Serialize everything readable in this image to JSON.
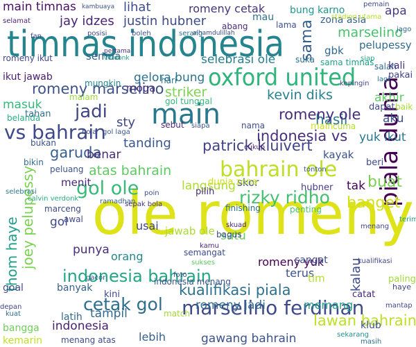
{
  "words": [
    {
      "text": "ole romeny",
      "color": "#dde318"
    },
    {
      "text": "timnas indonesia",
      "color": "#25848e"
    },
    {
      "text": "oxford united",
      "color": "#2fb47c"
    },
    {
      "text": "main",
      "color": "#2a788e"
    },
    {
      "text": "marselino ferdinan",
      "color": "#3e4a89"
    },
    {
      "text": "piala dunia",
      "color": "#440154"
    },
    {
      "text": "bahrain ole",
      "color": "#bddf26"
    },
    {
      "text": "vs bahrain",
      "color": "#3f4889"
    },
    {
      "text": "gol ole",
      "color": "#38b977"
    },
    {
      "text": "indonesia bahrain",
      "color": "#21a685"
    },
    {
      "text": "rizky ridho",
      "color": "#44bf70"
    },
    {
      "text": "cetak gol",
      "color": "#2e6d8e"
    },
    {
      "text": "romeny marselino",
      "color": "#3b528b"
    },
    {
      "text": "indonesia vs",
      "color": "#472d7b"
    },
    {
      "text": "jadi",
      "color": "#404688"
    },
    {
      "text": "hasil",
      "color": "#2a788e"
    },
    {
      "text": "romeny ole",
      "color": "#472c7a"
    },
    {
      "text": "patrick kluivert",
      "color": "#414287"
    },
    {
      "text": "garuda",
      "color": "#355f8d"
    },
    {
      "text": "atas bahrain",
      "color": "#5ec962"
    },
    {
      "text": "kualifikasi piala",
      "color": "#2d718e"
    },
    {
      "text": "lawan bahrain",
      "color": "#bddf26"
    },
    {
      "text": "joey pelupessy",
      "color": "#7ad151"
    },
    {
      "text": "thom haye",
      "color": "#1f9e89"
    },
    {
      "text": "kevin diks",
      "color": "#26828e"
    },
    {
      "text": "striker",
      "color": "#7fd34e"
    },
    {
      "text": "banget",
      "color": "#d0e11c"
    },
    {
      "text": "buat",
      "color": "#7ad151"
    },
    {
      "text": "sama",
      "color": "#355e8d"
    },
    {
      "text": "justin hubner",
      "color": "#3e4989"
    },
    {
      "text": "jay idzes",
      "color": "#482475"
    },
    {
      "text": "main timnas",
      "color": "#471063"
    },
    {
      "text": "lihat",
      "color": "#3e4c8a"
    },
    {
      "text": "romeny cetak",
      "color": "#46337e"
    },
    {
      "text": "bung karno",
      "color": "#1f988b"
    },
    {
      "text": "apa",
      "color": "#443a83"
    },
    {
      "text": "marselino",
      "color": "#4ac16d"
    },
    {
      "text": "pelupessy",
      "color": "#306a8e"
    },
    {
      "text": "selebrasi ole",
      "color": "#287d8e"
    },
    {
      "text": "gelora bung",
      "color": "#2c728e"
    },
    {
      "text": "masuk",
      "color": "#35b779"
    },
    {
      "text": "akhir",
      "color": "#5ec962"
    },
    {
      "text": "aku",
      "color": "#3b528b"
    },
    {
      "text": "yuk ikut",
      "color": "#2a778e"
    },
    {
      "text": "indonesia menang",
      "color": "#3b528b"
    },
    {
      "text": "romeny jadi",
      "color": "#2f6c8e"
    },
    {
      "text": "gawang bahrain",
      "color": "#3b528b"
    },
    {
      "text": "tanding",
      "color": "#39568c"
    },
    {
      "text": "langsung",
      "color": "#addc30"
    },
    {
      "text": "kalau",
      "color": "#3e4989"
    },
    {
      "text": "romeny yuk",
      "color": "#440154"
    },
    {
      "text": "usai",
      "color": "#404688"
    },
    {
      "text": "tampil",
      "color": "#31688e"
    },
    {
      "text": "satu",
      "color": "#65cb5e"
    },
    {
      "text": "punya",
      "color": "#472d7b"
    },
    {
      "text": "memang",
      "color": "#1f9f88"
    },
    {
      "text": "lebih",
      "color": "#355f8d"
    },
    {
      "text": "menang atas",
      "color": "#3e4a89"
    },
    {
      "text": "indonesia",
      "color": "#482173"
    },
    {
      "text": "skor",
      "color": "#39568c"
    },
    {
      "text": "tak",
      "color": "#440154"
    },
    {
      "text": "kayak",
      "color": "#3b528b"
    },
    {
      "text": "benar",
      "color": "#472c7a"
    },
    {
      "text": "sty",
      "color": "#3f4788"
    },
    {
      "text": "nama",
      "color": "#3e4c8a"
    },
    {
      "text": "semua",
      "color": "#34618d"
    },
    {
      "text": "moga",
      "color": "#472f7d"
    },
    {
      "text": "gbk",
      "color": "#31688e"
    },
    {
      "text": "lama",
      "color": "#3b528b"
    },
    {
      "text": "zona asia",
      "color": "#355f8d"
    },
    {
      "text": "abang",
      "color": "#472c7a"
    },
    {
      "text": "mau",
      "color": "#2c718e"
    },
    {
      "text": "ikut jawab",
      "color": "#481c6e"
    },
    {
      "text": "romeny ikut",
      "color": "#3f4788"
    },
    {
      "text": "hari",
      "color": "#2d718e"
    },
    {
      "text": "mungkin",
      "color": "#25848e"
    },
    {
      "text": "malam",
      "color": "#9bd93c"
    },
    {
      "text": "belanda",
      "color": "#27ad81"
    },
    {
      "text": "tahan",
      "color": "#2e6e8e"
    },
    {
      "text": "bola",
      "color": "#3e4c8a"
    },
    {
      "text": "gol laga",
      "color": "#39568c"
    },
    {
      "text": "bukan",
      "color": "#3b528b"
    },
    {
      "text": "peluang",
      "color": "#3b528b"
    },
    {
      "text": "menit",
      "color": "#482878"
    },
    {
      "text": "marceng",
      "color": "#3e4a89"
    },
    {
      "text": "gol",
      "color": "#3f4889"
    },
    {
      "text": "orang",
      "color": "#25858e"
    },
    {
      "text": "awal",
      "color": "#3f4889"
    },
    {
      "text": "bagus",
      "color": "#3f4788"
    },
    {
      "text": "jawab ole",
      "color": "#a8db34"
    },
    {
      "text": "penting",
      "color": "#48c16e"
    },
    {
      "text": "finishing",
      "color": "#2c718e"
    },
    {
      "text": "hubner",
      "color": "#433e85"
    },
    {
      "text": "pilih",
      "color": "#472c7a"
    },
    {
      "text": "dunia zona",
      "color": "#d0e11c"
    },
    {
      "text": "sangat",
      "color": "#3e4c8a"
    },
    {
      "text": "terus",
      "color": "#3b528b"
    },
    {
      "text": "tim",
      "color": "#b5de2b"
    },
    {
      "text": "goal",
      "color": "#3e4c8a"
    },
    {
      "text": "banyak",
      "color": "#355f8d"
    },
    {
      "text": "kini",
      "color": "#404688"
    },
    {
      "text": "latih",
      "color": "#31688e"
    },
    {
      "text": "bangga",
      "color": "#6ece58"
    },
    {
      "text": "kemarin",
      "color": "#c0df25"
    },
    {
      "text": "match",
      "color": "#a2da37"
    },
    {
      "text": "klub",
      "color": "#3b528b"
    },
    {
      "text": "catat",
      "color": "#482878"
    },
    {
      "text": "main",
      "color": "#d2e21b"
    },
    {
      "text": "suka",
      "color": "#2c728e"
    },
    {
      "text": "sama timnas",
      "color": "#1fa088"
    },
    {
      "text": "salah",
      "color": "#31688e"
    },
    {
      "text": "kali",
      "color": "#46307e"
    },
    {
      "text": "pakai",
      "color": "#414487"
    },
    {
      "text": "dapat",
      "color": "#3e4a89"
    },
    {
      "text": "baik",
      "color": "#a8db34"
    },
    {
      "text": "cuma",
      "color": "#b5de2b"
    },
    {
      "text": "beri",
      "color": "#3f4889"
    },
    {
      "text": "paling",
      "color": "#a0da39"
    },
    {
      "text": "haye",
      "color": "#3e4989"
    },
    {
      "text": "kualifikasi",
      "color": "#3f4889"
    },
    {
      "text": "stadion utama",
      "color": "#b5de2b"
    },
    {
      "text": "selamat",
      "color": "#481f70"
    },
    {
      "text": "kambuaya",
      "color": "#3b528b"
    },
    {
      "text": "selebrasi",
      "color": "#2a788e"
    },
    {
      "text": "sebut",
      "color": "#482878"
    },
    {
      "text": "siapa",
      "color": "#3b528b"
    },
    {
      "text": "jago",
      "color": "#31688e"
    },
    {
      "text": "gol tunggal",
      "color": "#35b779"
    },
    {
      "text": "menang",
      "color": "#414487"
    },
    {
      "text": "mantap",
      "color": "#3f4788"
    },
    {
      "text": "bikin",
      "color": "#31688e"
    },
    {
      "text": "lagi",
      "color": "#2a788e"
    },
    {
      "text": "alhamdulillah",
      "color": "#3e4989"
    },
    {
      "text": "verdonk",
      "color": "#1f9e89"
    },
    {
      "text": "pertama",
      "color": "#472d7b"
    },
    {
      "text": "sekarang",
      "color": "#21918c"
    },
    {
      "text": "depan",
      "color": "#404688"
    },
    {
      "text": "kuat",
      "color": "#2e6d8e"
    },
    {
      "text": "semangat",
      "color": "#3e4a89"
    },
    {
      "text": "sukses",
      "color": "#5ec962"
    },
    {
      "text": "skuad",
      "color": "#482475"
    },
    {
      "text": "calvin verdonk",
      "color": "#27ad81"
    },
    {
      "text": "kepingin",
      "color": "#3f4889"
    },
    {
      "text": "masih",
      "color": "#2c718e"
    },
    {
      "text": "cukup",
      "color": "#481a6c"
    },
    {
      "text": "tonton",
      "color": "#3b528b"
    },
    {
      "text": "serang",
      "color": "#2c728e"
    },
    {
      "text": "boleh",
      "color": "#3b528b"
    },
    {
      "text": "posisi",
      "color": "#3e4989"
    },
    {
      "text": "ramadhan",
      "color": "#355f8d"
    },
    {
      "text": "siap",
      "color": "#22a785"
    },
    {
      "text": "gacor",
      "color": "#39568c"
    },
    {
      "text": "foto",
      "color": "#3f4889"
    },
    {
      "text": "kamu",
      "color": "#482878"
    },
    {
      "text": "terima kasih",
      "color": "#1f9e89"
    },
    {
      "text": "pemain",
      "color": "#3e4a89"
    },
    {
      "text": "sepak bola",
      "color": "#46327e"
    },
    {
      "text": "fan",
      "color": "#3f4788"
    },
    {
      "text": "poin",
      "color": "#3b528b"
    }
  ]
}
